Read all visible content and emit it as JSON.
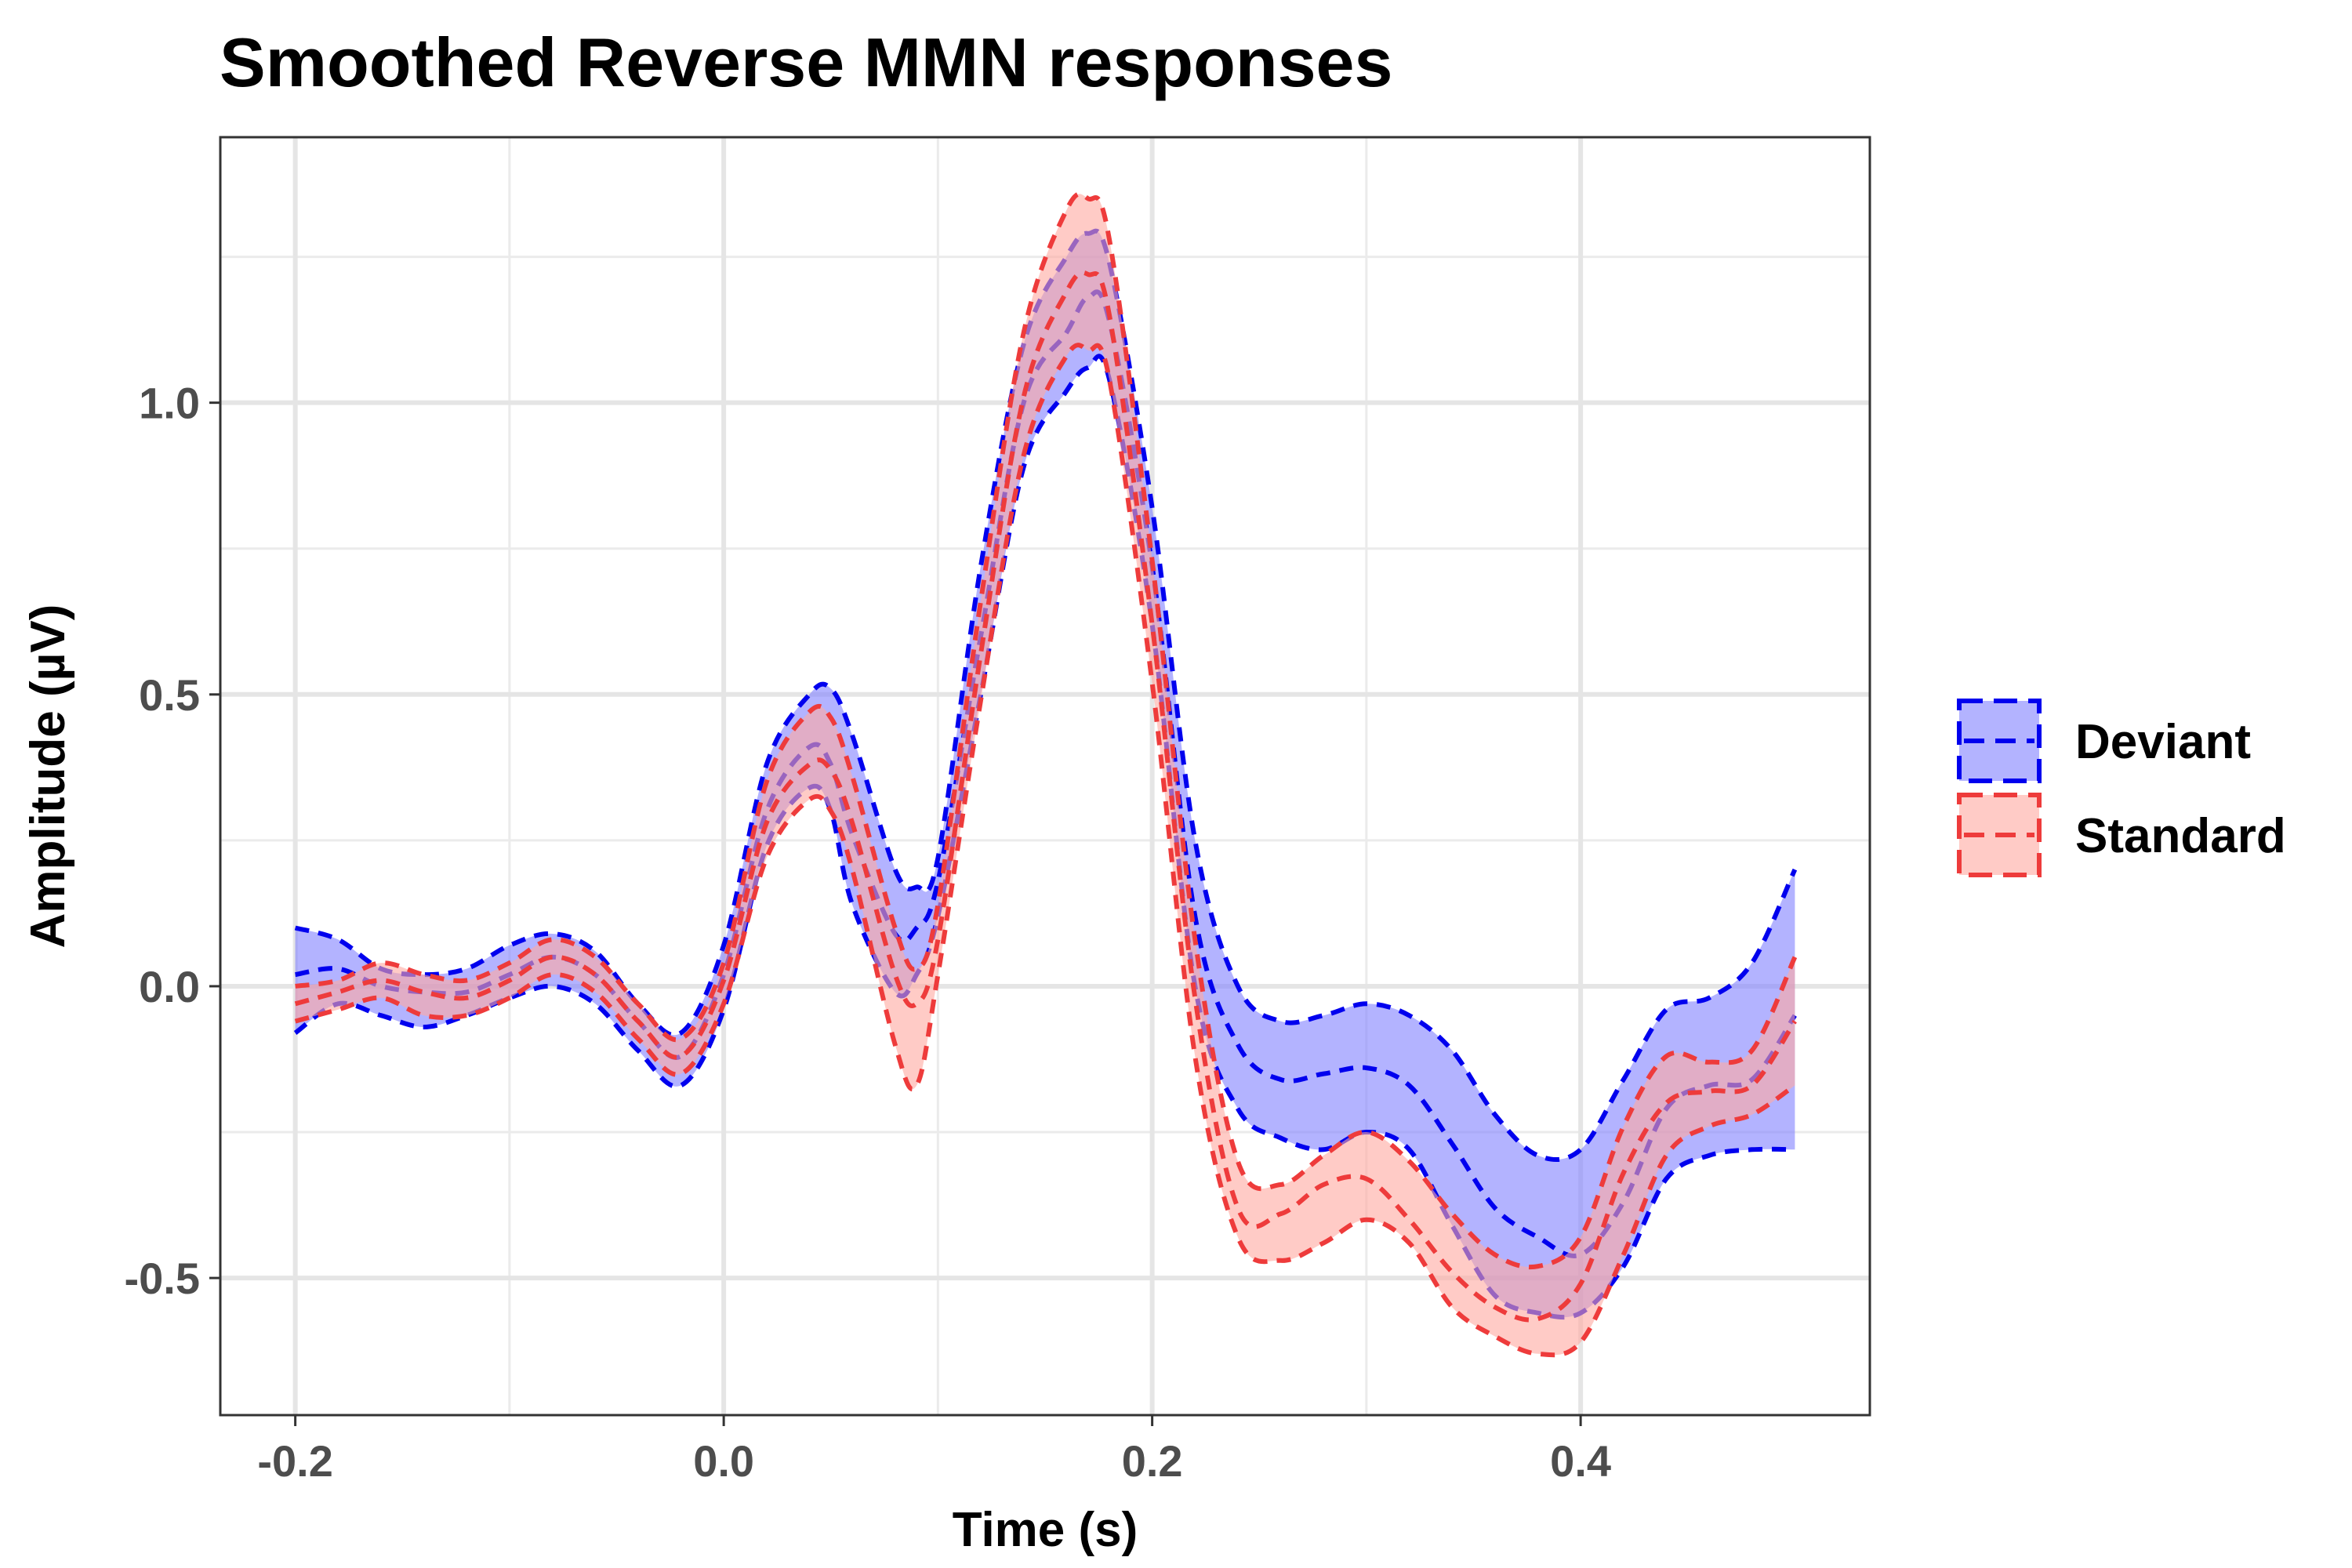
{
  "chart_data": {
    "type": "area",
    "title": "Smoothed Reverse MMN responses",
    "xlabel": "Time (s)",
    "ylabel": "Amplitude (µV)",
    "xlim": [
      -0.235,
      0.535
    ],
    "ylim": [
      -0.735,
      1.455
    ],
    "x_ticks": [
      -0.2,
      0.0,
      0.2,
      0.4
    ],
    "x_tick_labels": [
      "-0.2",
      "0.0",
      "0.2",
      "0.4"
    ],
    "y_ticks": [
      -0.5,
      0.0,
      0.5,
      1.0
    ],
    "y_tick_labels": [
      "-0.5",
      "0.0",
      "0.5",
      "1.0"
    ],
    "grid": true,
    "legend_position": "right",
    "x": [
      -0.2,
      -0.18,
      -0.16,
      -0.14,
      -0.12,
      -0.1,
      -0.08,
      -0.06,
      -0.04,
      -0.02,
      0.0,
      0.02,
      0.04,
      0.05,
      0.06,
      0.08,
      0.09,
      0.1,
      0.12,
      0.14,
      0.16,
      0.17,
      0.18,
      0.2,
      0.22,
      0.24,
      0.26,
      0.28,
      0.3,
      0.32,
      0.34,
      0.36,
      0.38,
      0.4,
      0.42,
      0.44,
      0.46,
      0.48,
      0.5
    ],
    "series": [
      {
        "name": "Deviant",
        "color": "#0000ee",
        "fill": "#8080ff",
        "mean": [
          0.02,
          0.03,
          0.0,
          -0.01,
          -0.01,
          0.02,
          0.05,
          0.02,
          -0.06,
          -0.12,
          0.02,
          0.3,
          0.41,
          0.38,
          0.26,
          0.09,
          0.1,
          0.18,
          0.6,
          1.0,
          1.12,
          1.18,
          1.14,
          0.72,
          0.12,
          -0.1,
          -0.16,
          -0.15,
          -0.14,
          -0.17,
          -0.27,
          -0.38,
          -0.43,
          -0.46,
          -0.37,
          -0.21,
          -0.17,
          -0.16,
          -0.05
        ],
        "upper": [
          0.1,
          0.08,
          0.03,
          0.02,
          0.03,
          0.07,
          0.09,
          0.06,
          -0.03,
          -0.08,
          0.07,
          0.38,
          0.5,
          0.51,
          0.43,
          0.2,
          0.17,
          0.22,
          0.72,
          1.1,
          1.25,
          1.29,
          1.24,
          0.82,
          0.25,
          0.0,
          -0.06,
          -0.05,
          -0.03,
          -0.05,
          -0.11,
          -0.22,
          -0.29,
          -0.28,
          -0.16,
          -0.04,
          -0.02,
          0.04,
          0.2
        ],
        "lower": [
          -0.08,
          -0.03,
          -0.05,
          -0.07,
          -0.05,
          -0.02,
          0.0,
          -0.03,
          -0.11,
          -0.17,
          -0.04,
          0.24,
          0.34,
          0.3,
          0.14,
          -0.01,
          0.02,
          0.12,
          0.5,
          0.89,
          1.02,
          1.06,
          1.04,
          0.62,
          0.0,
          -0.21,
          -0.26,
          -0.28,
          -0.25,
          -0.28,
          -0.41,
          -0.53,
          -0.56,
          -0.56,
          -0.48,
          -0.33,
          -0.29,
          -0.28,
          -0.28
        ]
      },
      {
        "name": "Standard",
        "color": "#ee3b3b",
        "fill": "#ffa8a0",
        "mean": [
          -0.03,
          -0.01,
          0.01,
          -0.01,
          -0.02,
          0.01,
          0.05,
          0.02,
          -0.06,
          -0.12,
          0.01,
          0.28,
          0.38,
          0.37,
          0.28,
          0.02,
          -0.03,
          0.08,
          0.57,
          1.01,
          1.19,
          1.22,
          1.15,
          0.62,
          -0.02,
          -0.38,
          -0.39,
          -0.34,
          -0.33,
          -0.4,
          -0.49,
          -0.55,
          -0.57,
          -0.51,
          -0.32,
          -0.2,
          -0.18,
          -0.17,
          -0.06
        ],
        "upper": [
          0.0,
          0.01,
          0.04,
          0.02,
          0.01,
          0.04,
          0.08,
          0.05,
          -0.03,
          -0.09,
          0.04,
          0.35,
          0.47,
          0.46,
          0.36,
          0.1,
          0.03,
          0.14,
          0.66,
          1.12,
          1.33,
          1.35,
          1.28,
          0.73,
          0.08,
          -0.3,
          -0.34,
          -0.29,
          -0.25,
          -0.3,
          -0.39,
          -0.46,
          -0.48,
          -0.43,
          -0.24,
          -0.12,
          -0.13,
          -0.11,
          0.05
        ],
        "lower": [
          -0.06,
          -0.04,
          -0.02,
          -0.05,
          -0.05,
          -0.02,
          0.02,
          -0.01,
          -0.09,
          -0.15,
          -0.03,
          0.22,
          0.32,
          0.3,
          0.2,
          -0.1,
          -0.17,
          0.02,
          0.49,
          0.91,
          1.08,
          1.09,
          1.04,
          0.52,
          -0.12,
          -0.43,
          -0.47,
          -0.44,
          -0.4,
          -0.44,
          -0.55,
          -0.6,
          -0.63,
          -0.61,
          -0.46,
          -0.29,
          -0.24,
          -0.22,
          -0.17
        ]
      }
    ]
  }
}
